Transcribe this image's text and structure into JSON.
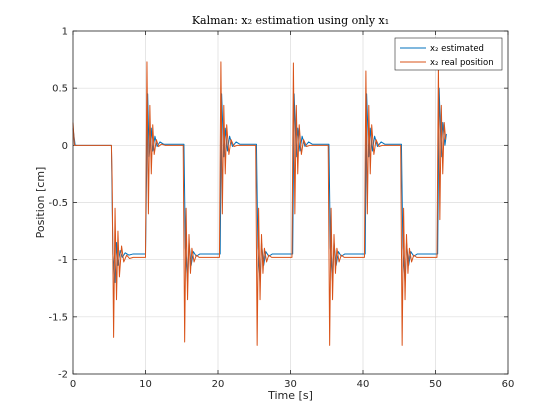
{
  "chart_data": {
    "type": "line",
    "title": "Kalman: x₂ estimation using only x₁",
    "xlabel": "Time [s]",
    "ylabel": "Position [cm]",
    "xlim": [
      0,
      60
    ],
    "ylim": [
      -2,
      1
    ],
    "xticks": [
      0,
      10,
      20,
      30,
      40,
      50,
      60
    ],
    "yticks": [
      -2,
      -1.5,
      -1,
      -0.5,
      0,
      0.5,
      1
    ],
    "xtick_labels": [
      "0",
      "10",
      "20",
      "30",
      "40",
      "50",
      "60"
    ],
    "ytick_labels": [
      "-2",
      "-1.5",
      "-1",
      "-0.5",
      "0",
      "0.5",
      "1"
    ],
    "grid": true,
    "legend_position": "top-right",
    "series": [
      {
        "name": "x₂ estimated",
        "color": "#0072BD",
        "x": [
          0,
          0.3,
          5.3,
          5.5,
          5.8,
          6.0,
          6.2,
          6.5,
          6.8,
          7.2,
          7.7,
          8.3,
          10.0,
          10.3,
          10.5,
          10.8,
          11.0,
          11.3,
          11.6,
          12.0,
          12.5,
          13.0,
          15.3,
          15.5,
          15.8,
          16.0,
          16.3,
          16.6,
          17.0,
          17.5,
          18.0,
          20.3,
          20.5,
          20.8,
          21.0,
          21.3,
          21.6,
          22.0,
          22.5,
          23.0,
          25.3,
          25.5,
          25.8,
          26.0,
          26.3,
          26.6,
          27.0,
          27.5,
          28.0,
          30.3,
          30.5,
          30.8,
          31.0,
          31.3,
          31.6,
          32.0,
          32.5,
          33.0,
          35.3,
          35.5,
          35.8,
          36.0,
          36.3,
          36.6,
          37.0,
          37.5,
          38.0,
          40.3,
          40.5,
          40.8,
          41.0,
          41.3,
          41.6,
          42.0,
          42.5,
          43.0,
          45.3,
          45.5,
          45.8,
          46.0,
          46.3,
          46.6,
          47.0,
          47.5,
          48.0,
          50.3,
          50.5,
          50.8,
          51.0,
          51.3,
          51.5
        ],
        "y": [
          0.15,
          0,
          0,
          -0.95,
          -1.2,
          -0.85,
          -1.05,
          -0.92,
          -0.98,
          -0.94,
          -0.96,
          -0.95,
          -0.95,
          0.45,
          -0.1,
          0.15,
          -0.05,
          0.08,
          -0.01,
          0.03,
          0.01,
          0.01,
          0.01,
          -0.9,
          -1.2,
          -0.85,
          -1.05,
          -0.93,
          -0.97,
          -0.95,
          -0.95,
          -0.95,
          0.45,
          -0.1,
          0.15,
          -0.05,
          0.08,
          -0.01,
          0.03,
          0.01,
          0.01,
          -0.9,
          -1.2,
          -0.85,
          -1.05,
          -0.93,
          -0.97,
          -0.95,
          -0.95,
          -0.95,
          0.45,
          -0.1,
          0.15,
          -0.05,
          0.08,
          -0.01,
          0.03,
          0.01,
          0.01,
          -0.9,
          -1.2,
          -0.85,
          -1.05,
          -0.93,
          -0.97,
          -0.95,
          -0.95,
          -0.95,
          0.45,
          -0.1,
          0.15,
          -0.05,
          0.08,
          -0.01,
          0.03,
          0.01,
          0.01,
          -0.9,
          -1.2,
          -0.85,
          -1.05,
          -0.93,
          -0.97,
          -0.95,
          -0.95,
          -0.95,
          0.5,
          -0.1,
          0.2,
          0.0,
          0.1
        ]
      },
      {
        "name": "x₂ real position",
        "color": "#D95319",
        "x": [
          0,
          0.2,
          5.3,
          5.4,
          5.6,
          5.8,
          6.0,
          6.2,
          6.4,
          6.7,
          7.0,
          7.4,
          7.8,
          8.3,
          10.0,
          10.2,
          10.4,
          10.6,
          10.8,
          11.0,
          11.2,
          11.5,
          11.8,
          12.2,
          12.7,
          15.2,
          15.4,
          15.6,
          15.8,
          16.0,
          16.2,
          16.4,
          16.7,
          17.0,
          17.4,
          17.9,
          20.2,
          20.4,
          20.6,
          20.8,
          21.0,
          21.2,
          21.5,
          21.8,
          22.2,
          22.7,
          25.2,
          25.4,
          25.6,
          25.8,
          26.0,
          26.2,
          26.4,
          26.7,
          27.0,
          27.4,
          27.9,
          30.2,
          30.4,
          30.6,
          30.8,
          31.0,
          31.2,
          31.5,
          31.8,
          32.2,
          32.7,
          35.2,
          35.4,
          35.6,
          35.8,
          36.0,
          36.2,
          36.4,
          36.7,
          37.0,
          37.4,
          37.9,
          40.2,
          40.4,
          40.6,
          40.8,
          41.0,
          41.2,
          41.5,
          41.8,
          42.2,
          42.7,
          45.2,
          45.4,
          45.6,
          45.8,
          46.0,
          46.2,
          46.4,
          46.7,
          47.0,
          47.4,
          47.9,
          50.2,
          50.4,
          50.6,
          50.8,
          51.0,
          51.2,
          51.4
        ],
        "y": [
          0.2,
          0,
          0,
          -0.3,
          -1.68,
          -0.55,
          -1.35,
          -0.75,
          -1.15,
          -0.88,
          -1.02,
          -0.96,
          -0.99,
          -0.98,
          -0.98,
          0.73,
          -0.6,
          0.35,
          -0.25,
          0.18,
          -0.08,
          0.05,
          -0.01,
          0.01,
          0.0,
          0.0,
          -1.72,
          -0.55,
          -1.35,
          -0.78,
          -1.12,
          -0.9,
          -1.02,
          -0.96,
          -0.98,
          -0.98,
          -0.98,
          0.73,
          -0.6,
          0.35,
          -0.25,
          0.18,
          -0.08,
          0.05,
          -0.01,
          0.0,
          0.0,
          -1.75,
          -0.55,
          -1.35,
          -0.78,
          -1.12,
          -0.9,
          -1.02,
          -0.96,
          -0.98,
          -0.98,
          -0.98,
          0.72,
          -0.6,
          0.35,
          -0.25,
          0.18,
          -0.08,
          0.05,
          -0.01,
          0.0,
          0.0,
          -1.75,
          -0.55,
          -1.35,
          -0.78,
          -1.12,
          -0.9,
          -1.02,
          -0.96,
          -0.98,
          -0.98,
          -0.98,
          0.65,
          -0.6,
          0.35,
          -0.25,
          0.18,
          -0.08,
          0.05,
          -0.01,
          0.0,
          0.0,
          -1.75,
          -0.55,
          -1.35,
          -0.78,
          -1.12,
          -0.9,
          -1.02,
          -0.96,
          -0.98,
          -0.98,
          -0.98,
          0.7,
          -0.65,
          0.35,
          -0.25,
          0.2,
          0.05
        ]
      }
    ]
  }
}
